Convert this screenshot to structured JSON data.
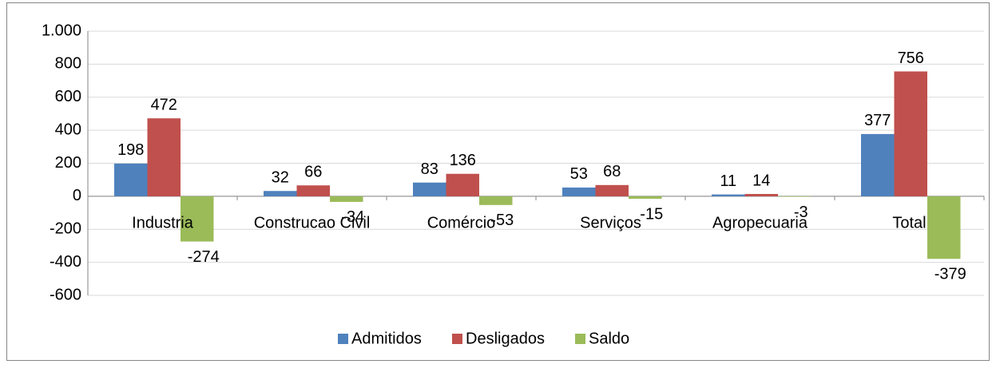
{
  "chart_data": {
    "type": "bar",
    "categories": [
      "Industria",
      "Construcao Civil",
      "Comércio",
      "Serviços",
      "Agropecuaria",
      "Total"
    ],
    "series": [
      {
        "name": "Admitidos",
        "color": "#4f81bd",
        "values": [
          198,
          32,
          83,
          53,
          11,
          377
        ]
      },
      {
        "name": "Desligados",
        "color": "#c0504d",
        "values": [
          472,
          66,
          136,
          68,
          14,
          756
        ]
      },
      {
        "name": "Saldo",
        "color": "#9bbb59",
        "values": [
          -274,
          -34,
          -53,
          -15,
          -3,
          -379
        ]
      }
    ],
    "ylim": [
      -600,
      1000
    ],
    "yticks": [
      -600,
      -400,
      -200,
      0,
      200,
      400,
      600,
      800,
      {
        "value": 1000,
        "label": "1.000"
      }
    ],
    "grid": true,
    "legend": "bottom"
  }
}
